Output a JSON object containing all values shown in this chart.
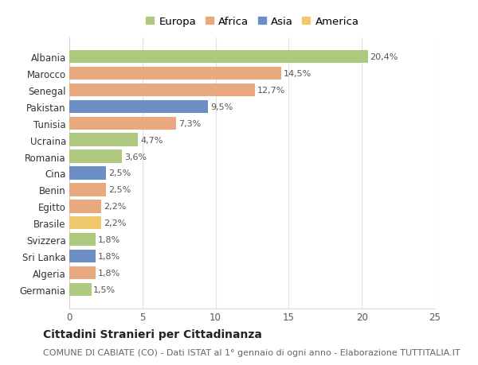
{
  "countries": [
    "Albania",
    "Marocco",
    "Senegal",
    "Pakistan",
    "Tunisia",
    "Ucraina",
    "Romania",
    "Cina",
    "Benin",
    "Egitto",
    "Brasile",
    "Svizzera",
    "Sri Lanka",
    "Algeria",
    "Germania"
  ],
  "values": [
    20.4,
    14.5,
    12.7,
    9.5,
    7.3,
    4.7,
    3.6,
    2.5,
    2.5,
    2.2,
    2.2,
    1.8,
    1.8,
    1.8,
    1.5
  ],
  "labels": [
    "20,4%",
    "14,5%",
    "12,7%",
    "9,5%",
    "7,3%",
    "4,7%",
    "3,6%",
    "2,5%",
    "2,5%",
    "2,2%",
    "2,2%",
    "1,8%",
    "1,8%",
    "1,8%",
    "1,5%"
  ],
  "continents": [
    "Europa",
    "Africa",
    "Africa",
    "Asia",
    "Africa",
    "Europa",
    "Europa",
    "Asia",
    "Africa",
    "Africa",
    "America",
    "Europa",
    "Asia",
    "Africa",
    "Europa"
  ],
  "colors": {
    "Europa": "#adc97e",
    "Africa": "#e8a97e",
    "Asia": "#6b8ec4",
    "America": "#f0c96e"
  },
  "legend_order": [
    "Europa",
    "Africa",
    "Asia",
    "America"
  ],
  "title": "Cittadini Stranieri per Cittadinanza",
  "subtitle": "COMUNE DI CABIATE (CO) - Dati ISTAT al 1° gennaio di ogni anno - Elaborazione TUTTITALIA.IT",
  "xlim": [
    0,
    25
  ],
  "xticks": [
    0,
    5,
    10,
    15,
    20,
    25
  ],
  "bg_color": "#ffffff",
  "grid_color": "#e0e0e0",
  "bar_height": 0.78,
  "title_fontsize": 10,
  "subtitle_fontsize": 8,
  "tick_fontsize": 8.5,
  "label_fontsize": 8,
  "legend_fontsize": 9.5
}
